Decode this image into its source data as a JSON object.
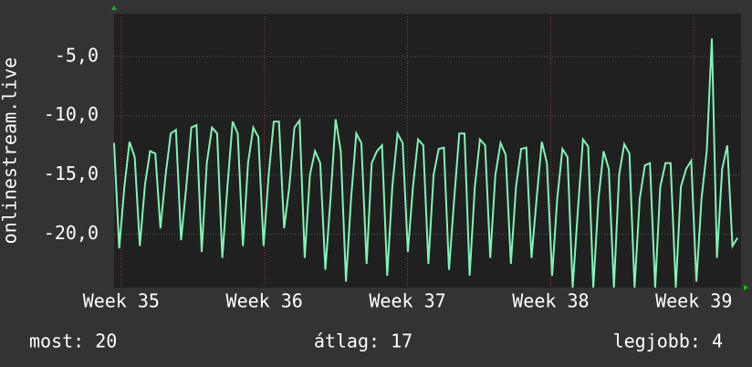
{
  "chart_data": {
    "type": "line",
    "ylabel": "onlinestream.live",
    "color": "#80f5b4",
    "x": [
      34.95,
      34.986,
      35.022,
      35.058,
      35.094,
      35.13,
      35.166,
      35.202,
      35.238,
      35.274,
      35.31,
      35.346,
      35.382,
      35.418,
      35.454,
      35.49,
      35.526,
      35.562,
      35.598,
      35.634,
      35.67,
      35.706,
      35.742,
      35.778,
      35.814,
      35.85,
      35.886,
      35.922,
      35.958,
      35.994,
      36.03,
      36.066,
      36.102,
      36.138,
      36.174,
      36.21,
      36.246,
      36.282,
      36.318,
      36.354,
      36.39,
      36.426,
      36.462,
      36.498,
      36.534,
      36.57,
      36.606,
      36.642,
      36.678,
      36.714,
      36.75,
      36.786,
      36.822,
      36.858,
      36.894,
      36.93,
      36.966,
      37.002,
      37.038,
      37.074,
      37.11,
      37.146,
      37.182,
      37.218,
      37.254,
      37.29,
      37.326,
      37.362,
      37.398,
      37.434,
      37.47,
      37.506,
      37.542,
      37.578,
      37.614,
      37.65,
      37.686,
      37.722,
      37.758,
      37.794,
      37.83,
      37.866,
      37.902,
      37.938,
      37.974,
      38.01,
      38.046,
      38.082,
      38.118,
      38.154,
      38.19,
      38.226,
      38.262,
      38.298,
      38.334,
      38.37,
      38.406,
      38.442,
      38.478,
      38.514,
      38.55,
      38.586,
      38.622,
      38.658,
      38.694,
      38.73,
      38.766,
      38.802,
      38.838,
      38.874,
      38.91,
      38.946,
      38.982,
      39.018,
      39.054,
      39.09,
      39.126,
      39.162,
      39.198,
      39.234,
      39.27,
      39.306
    ],
    "values": [
      -12.3,
      -21.2,
      -16,
      -12.2,
      -13.5,
      -21,
      -15.8,
      -13,
      -13.2,
      -19.5,
      -15,
      -11.5,
      -11.2,
      -20.5,
      -16,
      -11,
      -10.8,
      -21.5,
      -14,
      -11,
      -11.5,
      -22,
      -16,
      -10.5,
      -11.5,
      -21,
      -14,
      -11,
      -11.8,
      -21,
      -15,
      -10.5,
      -10.5,
      -19.5,
      -16,
      -11,
      -10.4,
      -22,
      -15,
      -13,
      -14,
      -23,
      -17,
      -10.3,
      -13,
      -24,
      -17,
      -11.5,
      -12.3,
      -22.5,
      -14,
      -13,
      -12.5,
      -23.5,
      -16,
      -11.5,
      -12.3,
      -21.5,
      -16,
      -12,
      -12.5,
      -22.5,
      -15,
      -12.8,
      -12.7,
      -23,
      -17,
      -11.5,
      -11.5,
      -23.5,
      -16,
      -12,
      -12.5,
      -22,
      -15,
      -12.3,
      -13.3,
      -22.5,
      -16,
      -12.8,
      -12.7,
      -22,
      -17,
      -12.2,
      -14,
      -23.5,
      -17,
      -12.8,
      -13.5,
      -24.5,
      -18,
      -12,
      -12.6,
      -24.5,
      -17,
      -13,
      -14.5,
      -24.5,
      -15,
      -12.4,
      -13.2,
      -24.5,
      -17,
      -14.2,
      -14,
      -24.5,
      -16,
      -14,
      -14,
      -24.5,
      -16,
      -14.5,
      -13.8,
      -24,
      -17,
      -13,
      -3.5,
      -22,
      -14.5,
      -12.5,
      -21,
      -20.3
    ],
    "xlim": [
      34.95,
      39.33
    ],
    "xticks": [
      {
        "value": 35,
        "label": "Week 35"
      },
      {
        "value": 36,
        "label": "Week 36"
      },
      {
        "value": 37,
        "label": "Week 37"
      },
      {
        "value": 38,
        "label": "Week 38"
      },
      {
        "value": 39,
        "label": "Week 39"
      }
    ],
    "ylim": [
      -24.5,
      -1.4
    ],
    "yticks": [
      {
        "value": -20,
        "label": "-20,0"
      },
      {
        "value": -15,
        "label": "-15,0"
      },
      {
        "value": -10,
        "label": "-10,0"
      },
      {
        "value": -5,
        "label": "-5,0"
      }
    ],
    "grid": true,
    "stats": [
      "most: 20",
      "átlag: 17",
      "legjobb: 4"
    ]
  }
}
